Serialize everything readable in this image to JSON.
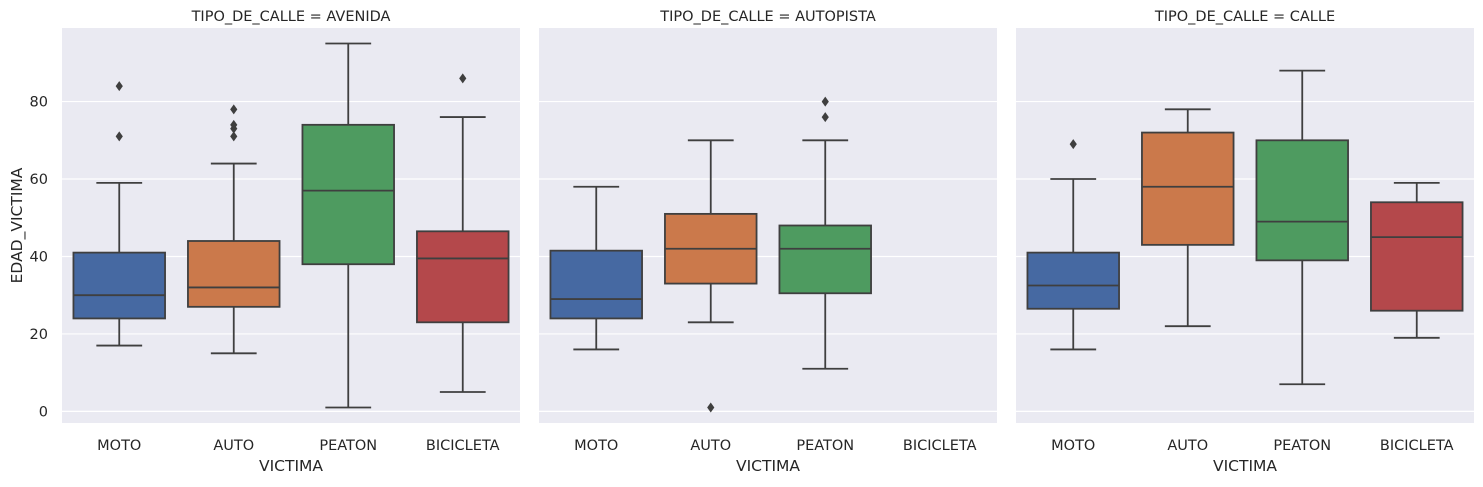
{
  "chart_data": {
    "type": "box",
    "ylabel": "EDAD_VICTIMA",
    "xlabel": "VICTIMA",
    "categories": [
      "MOTO",
      "AUTO",
      "PEATON",
      "BICICLETA"
    ],
    "yticks": [
      0,
      20,
      40,
      60,
      80
    ],
    "ylim": [
      -3,
      99
    ],
    "colors": {
      "MOTO": "#4c72b0",
      "AUTO": "#dd8452",
      "PEATON": "#55a868",
      "BICICLETA": "#c44e52"
    },
    "panels": [
      {
        "title": "TIPO_DE_CALLE = AVENIDA",
        "boxes": [
          {
            "category": "MOTO",
            "whislo": 17,
            "q1": 24,
            "median": 30,
            "q3": 41,
            "whishi": 59,
            "fliers": [
              71,
              84
            ]
          },
          {
            "category": "AUTO",
            "whislo": 15,
            "q1": 27,
            "median": 32,
            "q3": 44,
            "whishi": 64,
            "fliers": [
              71,
              73,
              74,
              78
            ]
          },
          {
            "category": "PEATON",
            "whislo": 1,
            "q1": 38,
            "median": 57,
            "q3": 74,
            "whishi": 95,
            "fliers": []
          },
          {
            "category": "BICICLETA",
            "whislo": 5,
            "q1": 23,
            "median": 39.5,
            "q3": 46.5,
            "whishi": 76,
            "fliers": [
              86
            ]
          }
        ]
      },
      {
        "title": "TIPO_DE_CALLE = AUTOPISTA",
        "boxes": [
          {
            "category": "MOTO",
            "whislo": 16,
            "q1": 24,
            "median": 29,
            "q3": 41.5,
            "whishi": 58,
            "fliers": []
          },
          {
            "category": "AUTO",
            "whislo": 23,
            "q1": 33,
            "median": 42,
            "q3": 51,
            "whishi": 70,
            "fliers": [
              1
            ]
          },
          {
            "category": "PEATON",
            "whislo": 11,
            "q1": 30.5,
            "median": 42,
            "q3": 48,
            "whishi": 70,
            "fliers": [
              76,
              80
            ]
          }
        ]
      },
      {
        "title": "TIPO_DE_CALLE = CALLE",
        "boxes": [
          {
            "category": "MOTO",
            "whislo": 16,
            "q1": 26.5,
            "median": 32.5,
            "q3": 41,
            "whishi": 60,
            "fliers": [
              69
            ]
          },
          {
            "category": "AUTO",
            "whislo": 22,
            "q1": 43,
            "median": 58,
            "q3": 72,
            "whishi": 78,
            "fliers": []
          },
          {
            "category": "PEATON",
            "whislo": 7,
            "q1": 39,
            "median": 49,
            "q3": 70,
            "whishi": 88,
            "fliers": []
          },
          {
            "category": "BICICLETA",
            "whislo": 19,
            "q1": 26,
            "median": 45,
            "q3": 54,
            "whishi": 59,
            "fliers": []
          }
        ]
      }
    ]
  }
}
